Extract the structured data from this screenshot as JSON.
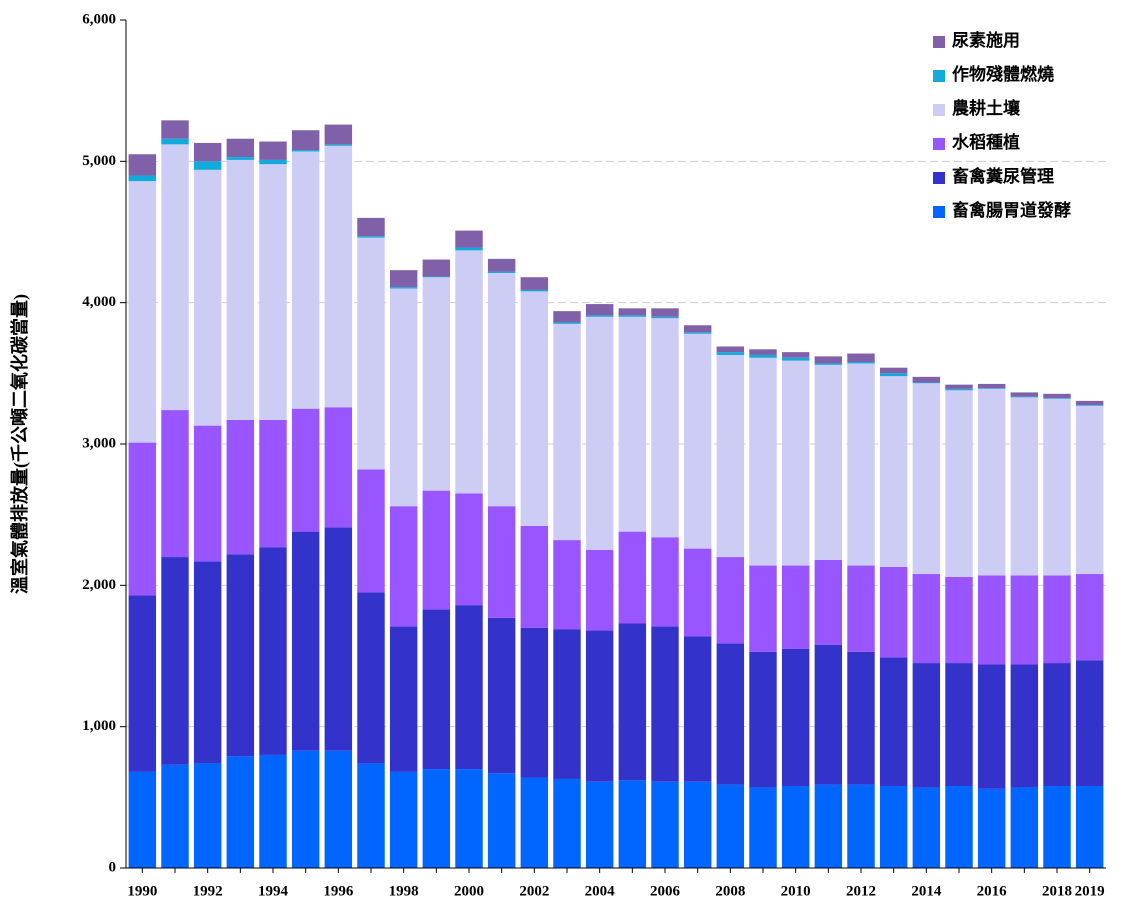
{
  "chart_data": {
    "type": "stacked-bar",
    "y_label": "溫室氣體排放量(千公噸二氧化碳當量)",
    "categories": [
      "1990",
      null,
      "1992",
      null,
      "1994",
      null,
      "1996",
      null,
      "1998",
      null,
      "2000",
      null,
      "2002",
      null,
      "2004",
      null,
      "2006",
      null,
      "2008",
      null,
      "2010",
      null,
      "2012",
      null,
      "2014",
      null,
      "2016",
      null,
      "2018",
      "2019"
    ],
    "series": [
      {
        "name": "畜禽腸胃道發酵",
        "color": "#0066ff",
        "values": [
          680,
          730,
          740,
          790,
          800,
          830,
          830,
          740,
          680,
          700,
          700,
          670,
          640,
          630,
          610,
          620,
          610,
          610,
          590,
          570,
          580,
          590,
          590,
          580,
          570,
          580,
          560,
          570,
          580,
          580
        ]
      },
      {
        "name": "畜禽糞尿管理",
        "color": "#3333cc",
        "values": [
          1250,
          1470,
          1430,
          1430,
          1470,
          1550,
          1580,
          1210,
          1030,
          1130,
          1160,
          1100,
          1060,
          1060,
          1070,
          1110,
          1100,
          1030,
          1000,
          960,
          970,
          990,
          940,
          910,
          880,
          870,
          880,
          870,
          870,
          890
        ]
      },
      {
        "name": "水稻種植",
        "color": "#9955ff",
        "values": [
          1080,
          1040,
          960,
          950,
          900,
          870,
          850,
          870,
          850,
          840,
          790,
          790,
          720,
          630,
          570,
          650,
          630,
          620,
          610,
          610,
          590,
          600,
          610,
          640,
          630,
          610,
          630,
          630,
          620,
          610
        ]
      },
      {
        "name": "農耕土壤",
        "color": "#ccccf5",
        "values": [
          1850,
          1880,
          1810,
          1840,
          1810,
          1820,
          1850,
          1640,
          1540,
          1510,
          1720,
          1650,
          1660,
          1530,
          1650,
          1520,
          1550,
          1520,
          1430,
          1470,
          1450,
          1380,
          1430,
          1350,
          1350,
          1320,
          1320,
          1260,
          1250,
          1190
        ]
      },
      {
        "name": "作物殘體燃燒",
        "color": "#11aadd",
        "values": [
          40,
          40,
          60,
          20,
          30,
          10,
          10,
          10,
          10,
          5,
          20,
          10,
          10,
          10,
          10,
          10,
          10,
          10,
          20,
          20,
          20,
          10,
          10,
          20,
          5,
          10,
          5,
          5,
          5,
          5
        ]
      },
      {
        "name": "尿素施用",
        "color": "#8060a8",
        "values": [
          150,
          130,
          130,
          130,
          130,
          140,
          140,
          130,
          120,
          120,
          120,
          90,
          90,
          80,
          80,
          50,
          60,
          50,
          40,
          40,
          40,
          50,
          60,
          40,
          40,
          30,
          30,
          30,
          30,
          30
        ]
      }
    ],
    "ylim": [
      0,
      6000
    ],
    "yticks": [
      0,
      {
        "value": 1000,
        "label": "1,000"
      },
      {
        "value": 2000,
        "label": "2,000"
      },
      {
        "value": 3000,
        "label": "3,000"
      },
      {
        "value": 4000,
        "label": "4,000"
      },
      {
        "value": 5000,
        "label": "5,000"
      },
      {
        "value": 6000,
        "label": "6,000"
      }
    ],
    "grid": true,
    "legend": "top-right"
  }
}
